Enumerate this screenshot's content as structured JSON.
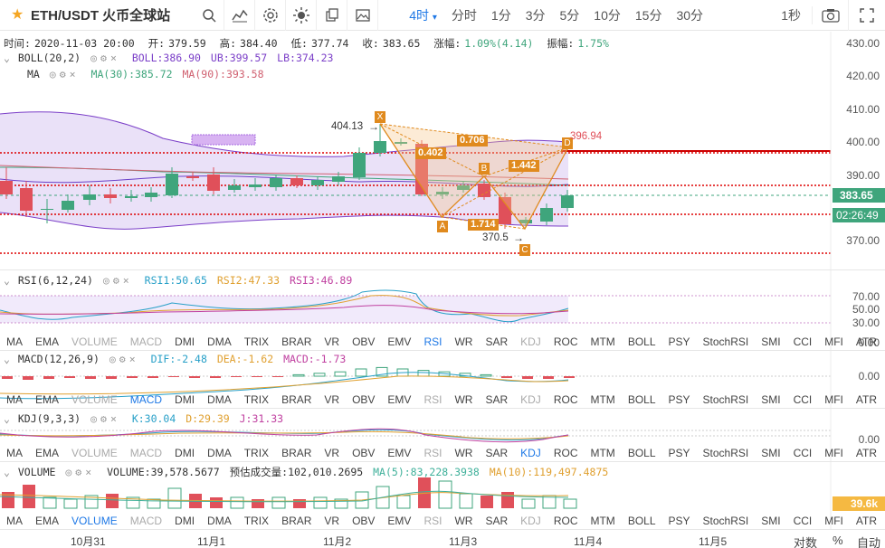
{
  "header": {
    "symbol": "ETH/USDT",
    "exchange": "火币全球站",
    "timeframes": [
      {
        "label": "4时",
        "active": true
      },
      {
        "label": "分时",
        "active": false
      },
      {
        "label": "1分",
        "active": false
      },
      {
        "label": "3分",
        "active": false
      },
      {
        "label": "5分",
        "active": false
      },
      {
        "label": "10分",
        "active": false
      },
      {
        "label": "15分",
        "active": false
      },
      {
        "label": "30分",
        "active": false
      }
    ],
    "interval_right": "1秒"
  },
  "ohlc": {
    "time_label": "时间:",
    "time": "2020-11-03 20:00",
    "open_label": "开:",
    "open": "379.59",
    "high_label": "高:",
    "high": "384.40",
    "low_label": "低:",
    "low": "377.74",
    "close_label": "收:",
    "close": "383.65",
    "change_label": "涨幅:",
    "change": "1.09%(4.14)",
    "amp_label": "振幅:",
    "amp": "1.75%"
  },
  "boll_line": {
    "name": "BOLL(20,2)",
    "boll": "BOLL:386.90",
    "ub": "UB:399.57",
    "lb": "LB:374.23"
  },
  "ma_line": {
    "name": "MA",
    "ma30": "MA(30):385.72",
    "ma90": "MA(90):393.58"
  },
  "price_axis": [
    "430.00",
    "420.00",
    "410.00",
    "400.00",
    "390.00",
    "380.00",
    "370.00"
  ],
  "price_tag": {
    "price": "383.65",
    "countdown": "02:26:49"
  },
  "pattern": {
    "X": "X",
    "A": "A",
    "B": "B",
    "C": "C",
    "D": "D",
    "x_price": "404.13",
    "c_price": "370.5",
    "d_price": "396.94",
    "r1": "0.402",
    "r2": "0.706",
    "r3": "1.714",
    "r4": "1.442"
  },
  "rsi_line": {
    "name": "RSI(6,12,24)",
    "rsi1": "RSI1:50.65",
    "rsi2": "RSI2:47.33",
    "rsi3": "RSI3:46.89"
  },
  "rsi_axis": [
    "70.00",
    "50.00",
    "30.00",
    "0.00"
  ],
  "macd_line": {
    "name": "MACD(12,26,9)",
    "dif": "DIF:-2.48",
    "dea": "DEA:-1.62",
    "macd": "MACD:-1.73"
  },
  "macd_axis": [
    "0.00"
  ],
  "kdj_line": {
    "name": "KDJ(9,3,3)",
    "k": "K:30.04",
    "d": "D:29.39",
    "j": "J:31.33"
  },
  "kdj_axis": [
    "0.00"
  ],
  "vol_line": {
    "name": "VOLUME",
    "vol": "VOLUME:39,578.5677",
    "est": "预估成交量:102,010.2695",
    "ma5": "MA(5):83,228.3938",
    "ma10": "MA(10):119,497.4875"
  },
  "vol_tag": "39.6k",
  "indicator_tabs": [
    "MA",
    "EMA",
    "VOLUME",
    "MACD",
    "DMI",
    "DMA",
    "TRIX",
    "BRAR",
    "VR",
    "OBV",
    "EMV",
    "RSI",
    "WR",
    "SAR",
    "KDJ",
    "ROC",
    "MTM",
    "BOLL",
    "PSY",
    "StochRSI",
    "SMI",
    "CCI",
    "MFI",
    "ATR",
    "BBW"
  ],
  "x_axis": [
    "10月31",
    "11月1",
    "11月2",
    "11月3",
    "11月4",
    "11月5"
  ],
  "x_axis_right": {
    "log": "对数",
    "pct": "%",
    "auto": "自动"
  },
  "colors": {
    "up": "#3fa57c",
    "down": "#e0505a",
    "accent": "#1e78e6",
    "pattern": "#e08a1e",
    "band": "#7b3fc8"
  }
}
